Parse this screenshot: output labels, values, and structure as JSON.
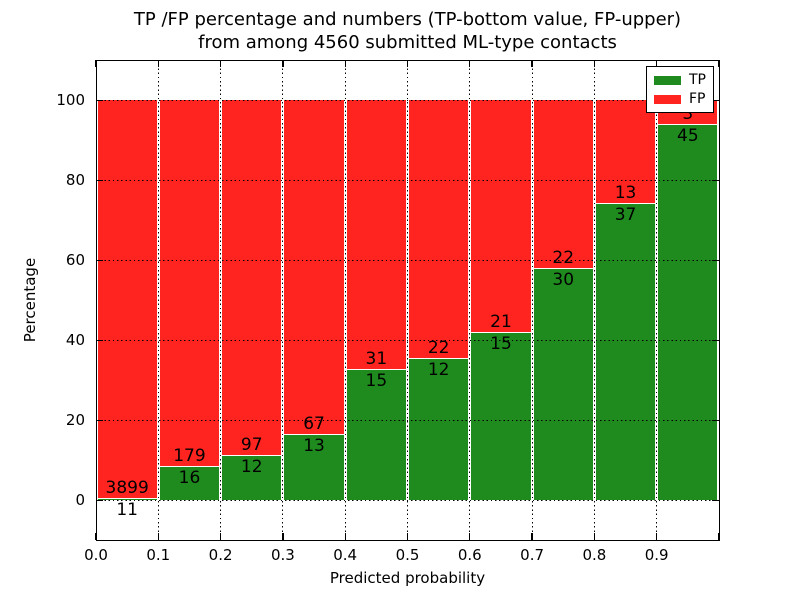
{
  "figure": {
    "title_line1": "TP /FP percentage and numbers (TP-bottom value, FP-upper)",
    "title_line2": "from among 4560 submitted ML-type contacts"
  },
  "chart_data": {
    "type": "bar",
    "subtype": "stacked-percentage",
    "title": "TP /FP percentage and numbers (TP-bottom value, FP-upper) from among 4560 submitted ML-type contacts",
    "xlabel": "Predicted probability",
    "ylabel": "Percentage",
    "total_submitted": 4560,
    "categories": [
      "0.0-0.1",
      "0.1-0.2",
      "0.2-0.3",
      "0.3-0.4",
      "0.4-0.5",
      "0.5-0.6",
      "0.6-0.7",
      "0.7-0.8",
      "0.8-0.9",
      "0.9-1.0"
    ],
    "series": [
      {
        "name": "TP",
        "color": "#1f8b1f",
        "values": [
          11,
          16,
          12,
          13,
          15,
          12,
          15,
          30,
          37,
          45
        ]
      },
      {
        "name": "FP",
        "color": "#ff2420",
        "values": [
          3899,
          179,
          97,
          67,
          31,
          22,
          21,
          22,
          13,
          3
        ]
      }
    ],
    "x_tick_labels": [
      "0.0",
      "0.1",
      "0.2",
      "0.3",
      "0.4",
      "0.5",
      "0.6",
      "0.7",
      "0.8",
      "0.9"
    ],
    "y_ticks": [
      0,
      20,
      40,
      60,
      80,
      100
    ],
    "xlim": [
      0.0,
      1.0
    ],
    "ylim": [
      -10,
      110
    ],
    "grid": "dotted",
    "legend_position": "upper right",
    "bar_label_rule": "TP count below segment boundary, FP count above segment boundary"
  }
}
